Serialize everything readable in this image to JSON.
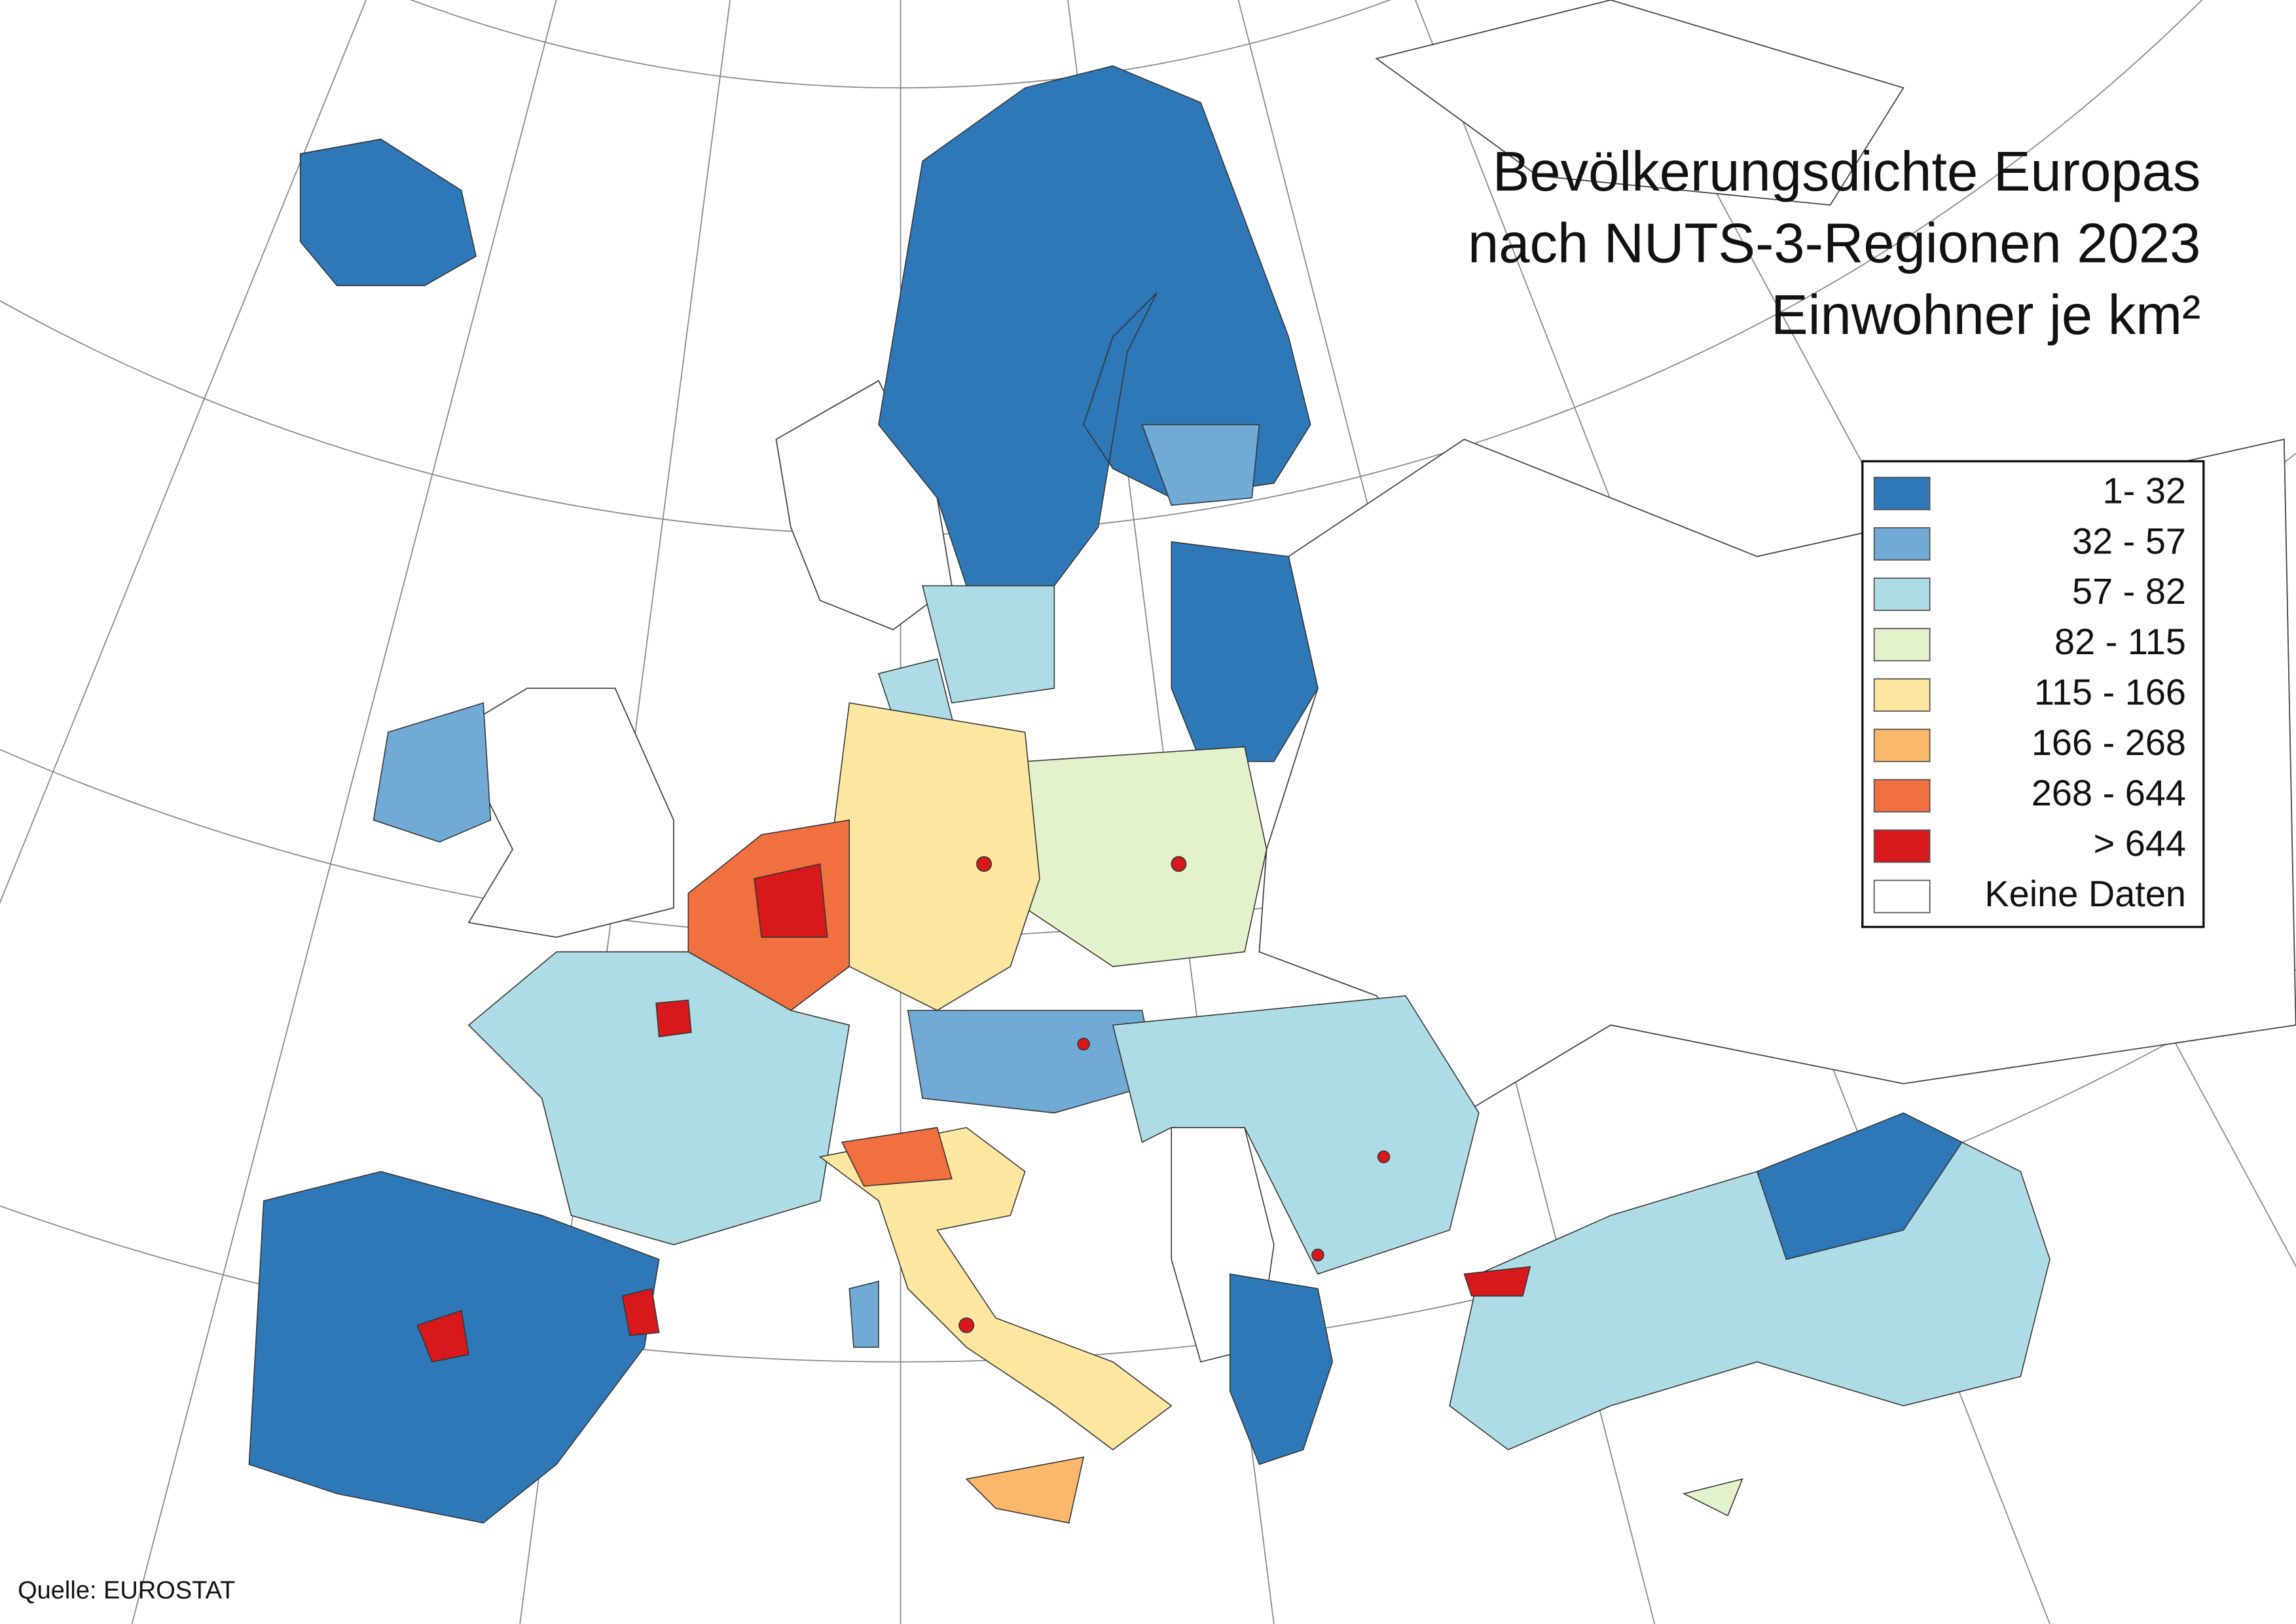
{
  "title_lines": [
    "Bevölkerungsdichte Europas",
    "nach NUTS-3-Regionen 2023",
    "Einwohner je km²"
  ],
  "legend": {
    "items": [
      {
        "label": "1- 32",
        "color": "#2e78b8"
      },
      {
        "label": "32 - 57",
        "color": "#71aad5"
      },
      {
        "label": "57 - 82",
        "color": "#aedce6"
      },
      {
        "label": "82 - 115",
        "color": "#e4f2cc"
      },
      {
        "label": "115 - 166",
        "color": "#fde7a0"
      },
      {
        "label": "166 - 268",
        "color": "#fbb86a"
      },
      {
        "label": "268 - 644",
        "color": "#f07040"
      },
      {
        "label": "> 644",
        "color": "#d7191c"
      },
      {
        "label": "Keine Daten",
        "color": "#ffffff"
      }
    ]
  },
  "source": "Quelle: EUROSTAT"
}
